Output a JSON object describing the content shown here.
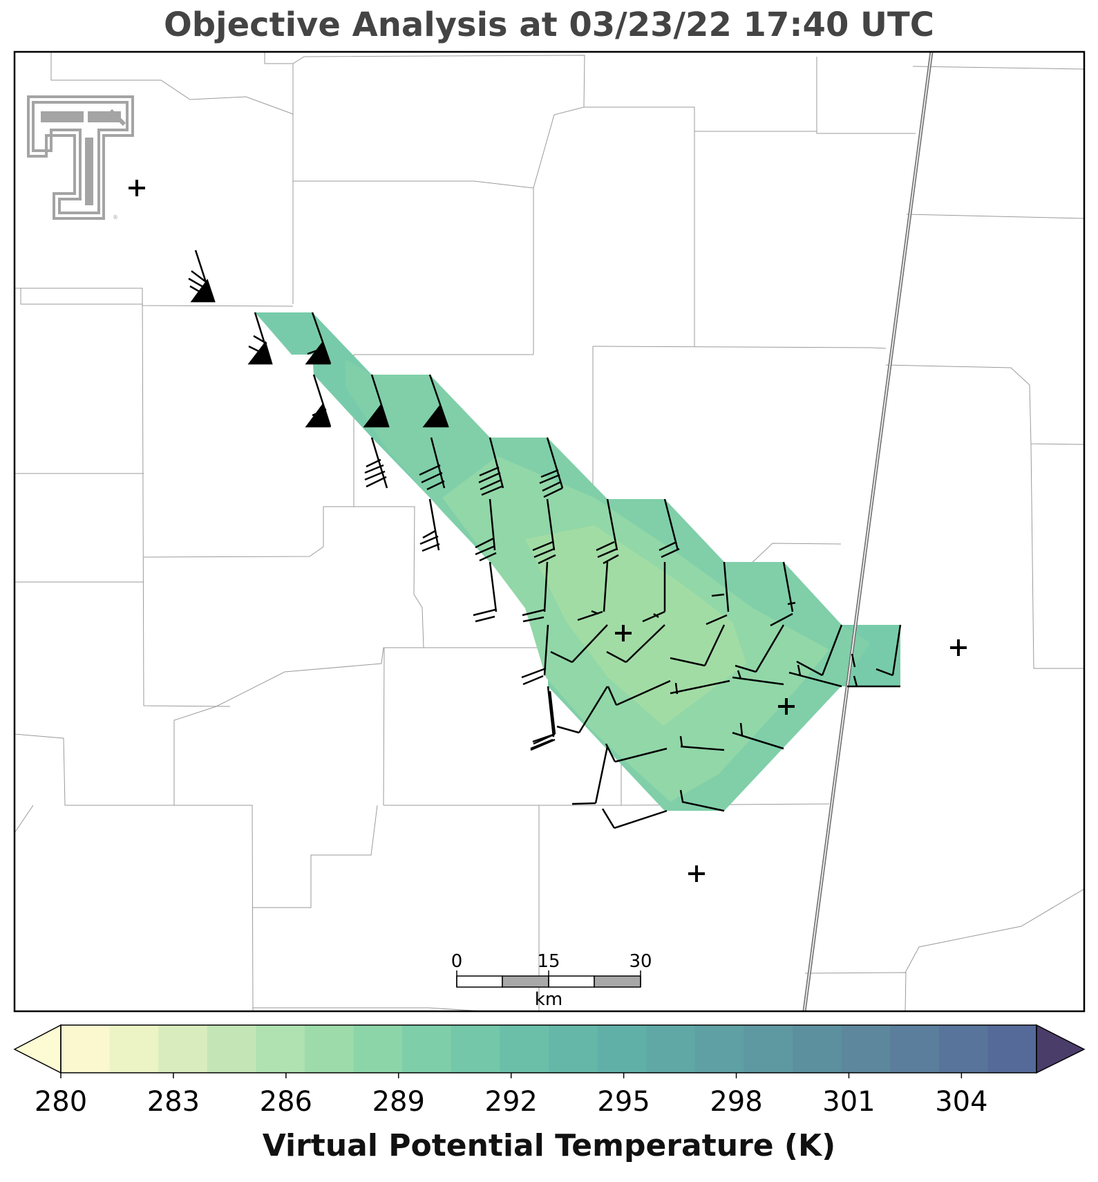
{
  "title": "Objective Analysis at 03/23/22 17:40 UTC",
  "scale_bar": {
    "ticks": [
      "0",
      "15",
      "30"
    ],
    "unit": "km"
  },
  "colorbar": {
    "label": "Virtual Potential Temperature (K)",
    "min": 280,
    "max": 306,
    "step": 1.3,
    "tick_labels": [
      "280",
      "283",
      "286",
      "289",
      "292",
      "295",
      "298",
      "301",
      "304"
    ],
    "tick_values": [
      280,
      283,
      286,
      289,
      292,
      295,
      298,
      301,
      304
    ],
    "extend": "both",
    "colormap": "crest (yellow-green-blue-purple)"
  },
  "logo": {
    "icon": "texas-tech-double-t-logo",
    "text": "T"
  },
  "station_markers": {
    "icon": "plus-marker",
    "count": 5
  },
  "wind_barbs": {
    "icon": "wind-barb",
    "units": "knots"
  },
  "analysis_field": {
    "name": "Virtual Potential Temperature",
    "units": "K",
    "range_shown": [
      286,
      289
    ]
  }
}
